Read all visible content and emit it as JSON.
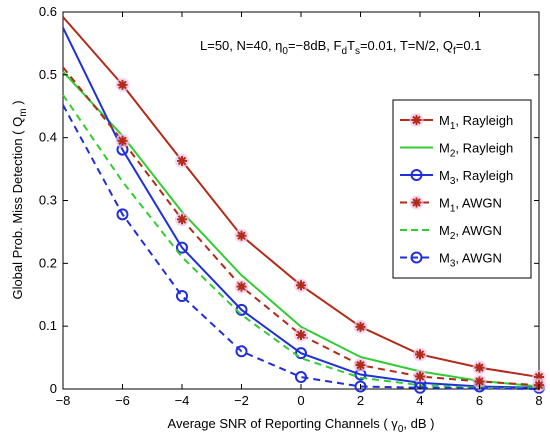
{
  "chart_data": {
    "type": "line",
    "title": "",
    "annotation": "L=50, N=40,  η0=−8dB, FdTs=0.01, T=N/2, Qf=0.1",
    "xlabel": "Average SNR of Reporting Channels ( γ0, dB )",
    "ylabel": "Global Prob. Miss Detection ( Qm )",
    "xlim": [
      -8,
      8
    ],
    "ylim": [
      0,
      0.6
    ],
    "xticks": [
      -8,
      -6,
      -4,
      -2,
      0,
      2,
      4,
      6,
      8
    ],
    "yticks": [
      0,
      0.1,
      0.2,
      0.3,
      0.4,
      0.5,
      0.6
    ],
    "xtick_labels": [
      "−8",
      "−6",
      "−4",
      "−2",
      "0",
      "2",
      "4",
      "6",
      "8"
    ],
    "ytick_labels": [
      "0",
      "0.1",
      "0.2",
      "0.3",
      "0.4",
      "0.5",
      "0.6"
    ],
    "grid": false,
    "legend_position": "right",
    "x": [
      -8,
      -6,
      -4,
      -2,
      0,
      2,
      4,
      6,
      8
    ],
    "series": [
      {
        "name": "M1, Rayleigh",
        "label_main": "M",
        "label_sub": "1",
        "label_rest": ", Rayleigh",
        "color": "#b22a18",
        "dash": "solid",
        "marker": "asterisk",
        "marker_x": [
          -6,
          -4,
          -2,
          0,
          2,
          4,
          6,
          8
        ],
        "values": [
          0.592,
          0.484,
          0.363,
          0.244,
          0.165,
          0.099,
          0.055,
          0.034,
          0.019
        ]
      },
      {
        "name": "M2, Rayleigh",
        "label_main": "M",
        "label_sub": "2",
        "label_rest": ", Rayleigh",
        "color": "#33cc33",
        "dash": "solid",
        "marker": "none",
        "marker_x": [],
        "values": [
          0.505,
          0.403,
          0.282,
          0.181,
          0.099,
          0.051,
          0.028,
          0.013,
          0.004
        ]
      },
      {
        "name": "M3, Rayleigh",
        "label_main": "M",
        "label_sub": "3",
        "label_rest": ", Rayleigh",
        "color": "#1f2fd9",
        "dash": "solid",
        "marker": "circle",
        "marker_x": [
          -6,
          -4,
          -2,
          0,
          2,
          4,
          6,
          8
        ],
        "values": [
          0.575,
          0.381,
          0.225,
          0.126,
          0.057,
          0.023,
          0.01,
          0.004,
          0.002
        ]
      },
      {
        "name": "M1, AWGN",
        "label_main": "M",
        "label_sub": "1",
        "label_rest": ", AWGN",
        "color": "#b22a18",
        "dash": "dashed",
        "marker": "asterisk",
        "marker_x": [
          -6,
          -4,
          -2,
          0,
          2,
          4,
          6,
          8
        ],
        "values": [
          0.512,
          0.395,
          0.27,
          0.163,
          0.086,
          0.038,
          0.02,
          0.012,
          0.006
        ]
      },
      {
        "name": "M2, AWGN",
        "label_main": "M",
        "label_sub": "2",
        "label_rest": ", AWGN",
        "color": "#33cc33",
        "dash": "dashed",
        "marker": "none",
        "marker_x": [],
        "values": [
          0.468,
          0.33,
          0.21,
          0.118,
          0.049,
          0.018,
          0.006,
          0.002,
          0.001
        ]
      },
      {
        "name": "M3, AWGN",
        "label_main": "M",
        "label_sub": "3",
        "label_rest": ", AWGN",
        "color": "#1f2fd9",
        "dash": "dashed",
        "marker": "circle",
        "marker_x": [
          -6,
          -4,
          -2,
          0,
          2,
          4
        ],
        "values": [
          0.452,
          0.278,
          0.148,
          0.06,
          0.019,
          0.004,
          0.002,
          0.001,
          0.0
        ]
      }
    ]
  }
}
